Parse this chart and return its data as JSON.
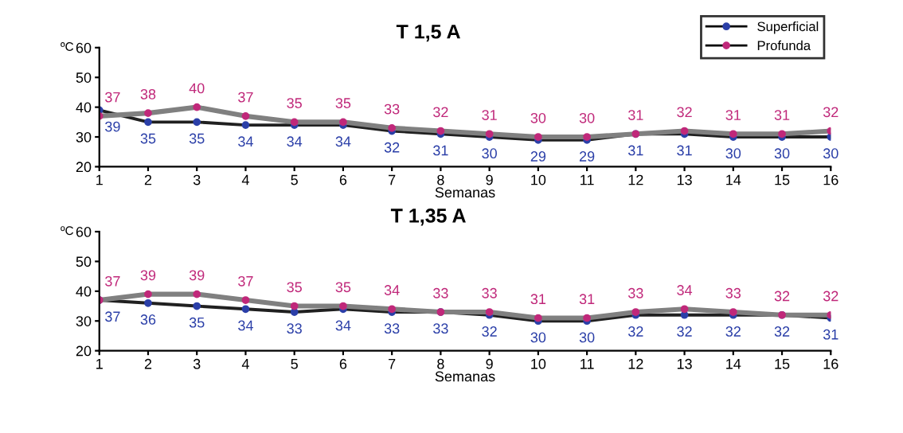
{
  "chart_data": [
    {
      "type": "line",
      "title": "T 1,5 A",
      "xlabel": "Semanas",
      "ylabel": "ºC",
      "x": [
        1,
        2,
        3,
        4,
        5,
        6,
        7,
        8,
        9,
        10,
        11,
        12,
        13,
        14,
        15,
        16
      ],
      "xlim": [
        1,
        16
      ],
      "xticks": [
        1,
        2,
        3,
        4,
        5,
        6,
        7,
        8,
        9,
        10,
        11,
        12,
        13,
        14,
        15,
        16
      ],
      "ylim": [
        20,
        60
      ],
      "yticks": [
        20,
        30,
        40,
        50,
        60
      ],
      "grid": false,
      "legend": "top right",
      "marker": "circle",
      "line_style": "solid",
      "data_labels": true,
      "series": [
        {
          "name": "Superficial",
          "color": "#2b3fa8",
          "values": [
            39,
            35,
            35,
            34,
            34,
            34,
            32,
            31,
            30,
            29,
            29,
            31,
            31,
            30,
            30,
            30
          ]
        },
        {
          "name": "Profunda",
          "color": "#c0287a",
          "values": [
            37,
            38,
            40,
            37,
            35,
            35,
            33,
            32,
            31,
            30,
            30,
            31,
            32,
            31,
            31,
            32
          ]
        }
      ]
    },
    {
      "type": "line",
      "title": "T 1,35 A",
      "xlabel": "Semanas",
      "ylabel": "ºC",
      "x": [
        1,
        2,
        3,
        4,
        5,
        6,
        7,
        8,
        9,
        10,
        11,
        12,
        13,
        14,
        15,
        16
      ],
      "xlim": [
        1,
        16
      ],
      "xticks": [
        1,
        2,
        3,
        4,
        5,
        6,
        7,
        8,
        9,
        10,
        11,
        12,
        13,
        14,
        15,
        16
      ],
      "ylim": [
        20,
        60
      ],
      "yticks": [
        20,
        30,
        40,
        50,
        60
      ],
      "grid": false,
      "marker": "circle",
      "line_style": "solid",
      "data_labels": true,
      "series": [
        {
          "color": "#2b3fa8",
          "values": [
            37,
            36,
            35,
            34,
            33,
            34,
            33,
            33,
            32,
            30,
            30,
            32,
            32,
            32,
            32,
            31
          ]
        },
        {
          "color": "#c0287a",
          "values": [
            37,
            39,
            39,
            37,
            35,
            35,
            34,
            33,
            33,
            31,
            31,
            33,
            34,
            33,
            32,
            32
          ]
        }
      ]
    }
  ]
}
